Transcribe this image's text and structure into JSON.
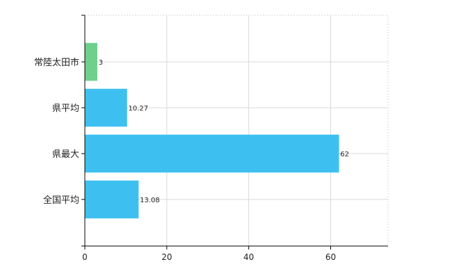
{
  "chart_data": {
    "type": "bar",
    "orientation": "horizontal",
    "categories": [
      "常陸太田市",
      "県平均",
      "県最大",
      "全国平均"
    ],
    "values": [
      3,
      10.27,
      62,
      13.08
    ],
    "value_labels": [
      "3",
      "10.27",
      "62",
      "13.08"
    ],
    "colors": [
      "#6fd08c",
      "#3dc0f0",
      "#3dc0f0",
      "#3dc0f0"
    ],
    "xlim": [
      0,
      74
    ],
    "xticks": [
      0,
      20,
      40,
      60
    ],
    "xtick_labels": [
      "0",
      "20",
      "40",
      "60"
    ],
    "grid": true,
    "legend": "none"
  }
}
